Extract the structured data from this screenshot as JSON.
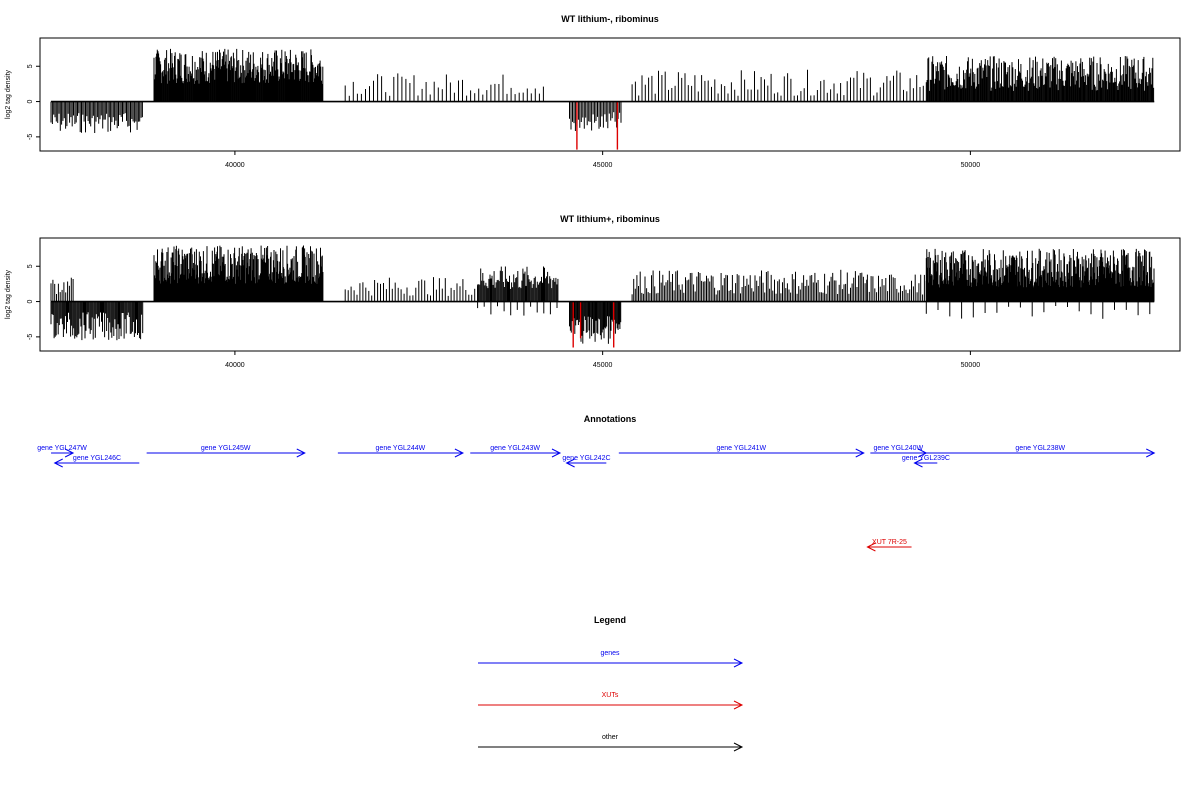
{
  "chart_data": [
    {
      "type": "bar",
      "title": "WT lithium-, ribominus",
      "xlabel": "",
      "ylabel": "log2 tag density",
      "xlim": [
        37350,
        52850
      ],
      "ylim": [
        -7,
        9
      ],
      "x_ticks": [
        40000,
        45000,
        50000
      ],
      "x_tick_labels": [
        "40000",
        "45000",
        "50000"
      ],
      "y_ticks": [
        -5,
        0,
        5
      ],
      "y_tick_labels": [
        "-5",
        "0",
        "5"
      ],
      "colors": {
        "bars": "#000000",
        "highlight": "#dd0000",
        "frame": "#000000"
      },
      "series": [
        {
          "segments": [
            {
              "from": 37500,
              "to": 38750,
              "strand": -1,
              "lo": 1.5,
              "hi": 4.5,
              "step": 18
            },
            {
              "from": 38900,
              "to": 41200,
              "strand": 1,
              "lo": 2.5,
              "hi": 7.5,
              "step": 9
            },
            {
              "from": 41500,
              "to": 44200,
              "strand": 1,
              "lo": 0.8,
              "hi": 4.0,
              "step": 55
            },
            {
              "from": 44550,
              "to": 45250,
              "strand": -1,
              "lo": 1.5,
              "hi": 4.5,
              "step": 20
            },
            {
              "from": 45400,
              "to": 49400,
              "strand": 1,
              "lo": 0.8,
              "hi": 4.5,
              "step": 45
            },
            {
              "from": 49400,
              "to": 52500,
              "strand": 1,
              "lo": 1.5,
              "hi": 6.5,
              "step": 11
            }
          ],
          "highlights": [
            {
              "x": 44650,
              "y": -6.8
            },
            {
              "x": 45200,
              "y": -6.8
            }
          ]
        }
      ]
    },
    {
      "type": "bar",
      "title": "WT lithium+, ribominus",
      "xlabel": "",
      "ylabel": "log2 tag density",
      "xlim": [
        37350,
        52850
      ],
      "ylim": [
        -7,
        9
      ],
      "x_ticks": [
        40000,
        45000,
        50000
      ],
      "x_tick_labels": [
        "40000",
        "45000",
        "50000"
      ],
      "y_ticks": [
        -5,
        0,
        5
      ],
      "y_tick_labels": [
        "-5",
        "0",
        "5"
      ],
      "colors": {
        "bars": "#000000",
        "highlight": "#dd0000",
        "frame": "#000000"
      },
      "series": [
        {
          "segments": [
            {
              "from": 37500,
              "to": 37800,
              "strand": 1,
              "lo": 1.0,
              "hi": 3.5,
              "step": 25
            },
            {
              "from": 37500,
              "to": 38750,
              "strand": -1,
              "lo": 1.5,
              "hi": 5.5,
              "step": 14
            },
            {
              "from": 38900,
              "to": 41200,
              "strand": 1,
              "lo": 2.5,
              "hi": 8.0,
              "step": 8
            },
            {
              "from": 41500,
              "to": 43300,
              "strand": 1,
              "lo": 0.8,
              "hi": 3.5,
              "step": 40
            },
            {
              "from": 43300,
              "to": 44400,
              "strand": 1,
              "lo": 1.5,
              "hi": 5.0,
              "step": 14
            },
            {
              "from": 43300,
              "to": 44400,
              "strand": -1,
              "lo": 0.5,
              "hi": 2.0,
              "step": 90
            },
            {
              "from": 44550,
              "to": 45250,
              "strand": -1,
              "lo": 2.0,
              "hi": 6.0,
              "step": 12
            },
            {
              "from": 45400,
              "to": 48600,
              "strand": 1,
              "lo": 1.0,
              "hi": 4.5,
              "step": 22
            },
            {
              "from": 48600,
              "to": 49400,
              "strand": 1,
              "lo": 1.0,
              "hi": 4.0,
              "step": 25
            },
            {
              "from": 49400,
              "to": 52500,
              "strand": 1,
              "lo": 2.0,
              "hi": 7.5,
              "step": 8
            },
            {
              "from": 49400,
              "to": 52500,
              "strand": -1,
              "lo": 0.5,
              "hi": 2.5,
              "step": 160
            }
          ],
          "highlights": [
            {
              "x": 44600,
              "y": -6.5
            },
            {
              "x": 44700,
              "y": -5.2
            },
            {
              "x": 45150,
              "y": -6.5
            }
          ]
        }
      ]
    }
  ],
  "annotations": {
    "title": "Annotations",
    "features": [
      {
        "label": "gene YGL247W",
        "start": 37500,
        "end": 37800,
        "strand": 1,
        "row": 0,
        "type": "gene"
      },
      {
        "label": "gene YGL246C",
        "start": 37550,
        "end": 38700,
        "strand": -1,
        "row": 1,
        "type": "gene"
      },
      {
        "label": "gene YGL245W",
        "start": 38800,
        "end": 40950,
        "strand": 1,
        "row": 0,
        "type": "gene"
      },
      {
        "label": "gene YGL244W",
        "start": 41400,
        "end": 43100,
        "strand": 1,
        "row": 0,
        "type": "gene"
      },
      {
        "label": "gene YGL243W",
        "start": 43200,
        "end": 44420,
        "strand": 1,
        "row": 0,
        "type": "gene"
      },
      {
        "label": "gene YGL242C",
        "start": 44510,
        "end": 45050,
        "strand": -1,
        "row": 1,
        "type": "gene"
      },
      {
        "label": "gene YGL241W",
        "start": 45220,
        "end": 48550,
        "strand": 1,
        "row": 0,
        "type": "gene"
      },
      {
        "label": "gene YGL240W",
        "start": 48640,
        "end": 49400,
        "strand": 1,
        "row": 0,
        "type": "gene"
      },
      {
        "label": "gene YGL239C",
        "start": 49240,
        "end": 49550,
        "strand": -1,
        "row": 1,
        "type": "gene"
      },
      {
        "label": "gene YGL238W",
        "start": 49400,
        "end": 52500,
        "strand": 1,
        "row": 0,
        "type": "gene"
      },
      {
        "label": "XUT 7R-25",
        "start": 48600,
        "end": 49200,
        "strand": -1,
        "row": 2,
        "type": "xut"
      }
    ],
    "colors": {
      "gene": "#0000ee",
      "xut": "#dd0000",
      "other": "#000000"
    }
  },
  "legend": {
    "title": "Legend",
    "items": [
      {
        "label": "genes",
        "color": "#0000ee"
      },
      {
        "label": "XUTs",
        "color": "#dd0000"
      },
      {
        "label": "other",
        "color": "#000000"
      }
    ]
  }
}
